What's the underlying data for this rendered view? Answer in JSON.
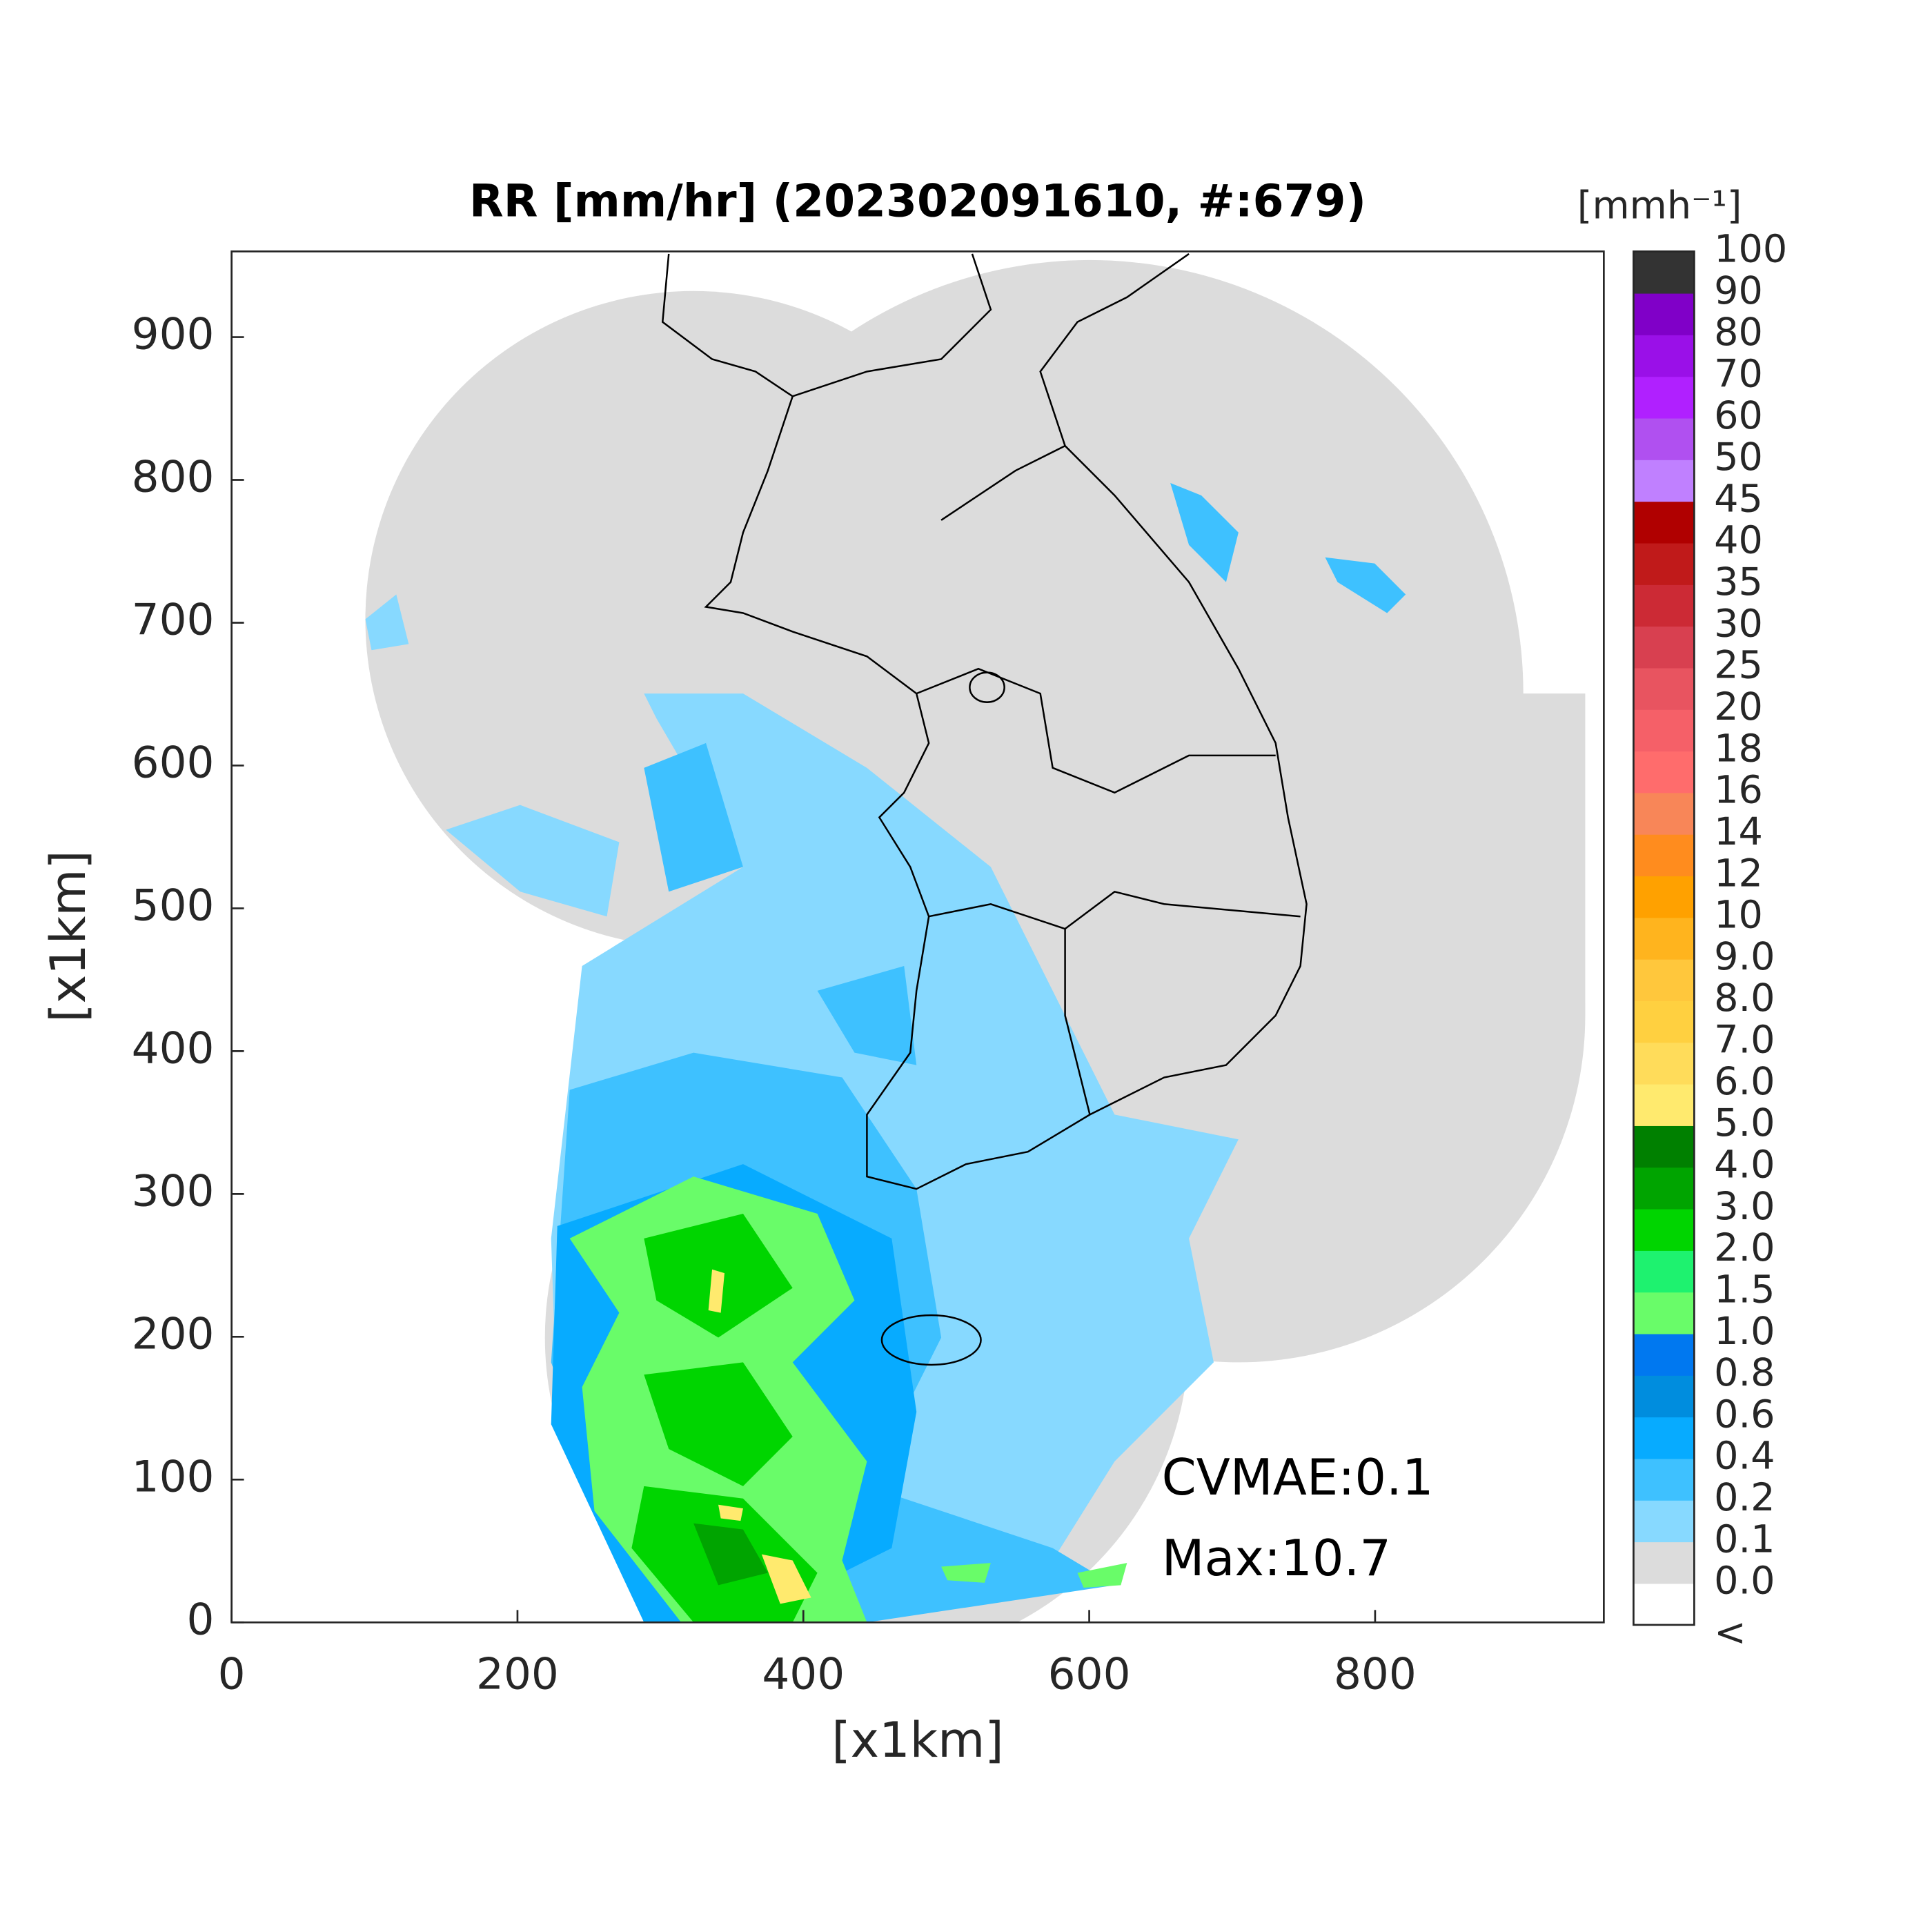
{
  "title": "RR [mm/hr] (202302091610, #:679)",
  "xlabel": "[x1km]",
  "ylabel": "[x1km]",
  "xlim": [
    0,
    960
  ],
  "ylim": [
    0,
    960
  ],
  "xticks": [
    0,
    200,
    400,
    600,
    800
  ],
  "yticks": [
    0,
    100,
    200,
    300,
    400,
    500,
    600,
    700,
    800,
    900
  ],
  "annotations": [
    "CVMAE:0.1",
    "Max:10.7"
  ],
  "colorbar": {
    "title": "[mmh⁻¹]",
    "labels": [
      "<",
      "0.0",
      "0.1",
      "0.2",
      "0.4",
      "0.6",
      "0.8",
      "1.0",
      "1.5",
      "2.0",
      "3.0",
      "4.0",
      "5.0",
      "6.0",
      "7.0",
      "8.0",
      "9.0",
      "10",
      "12",
      "14",
      "16",
      "18",
      "20",
      "25",
      "30",
      "35",
      "40",
      "45",
      "50",
      "60",
      "70",
      "80",
      "90",
      "100"
    ],
    "colors": [
      "#ffffff",
      "#dcdcdc",
      "#87d9ff",
      "#3ec1ff",
      "#07abff",
      "#008dde",
      "#0078f0",
      "#69fc69",
      "#1ef26f",
      "#00d500",
      "#00a400",
      "#008000",
      "#ffea6e",
      "#ffdc5a",
      "#ffd040",
      "#ffc73c",
      "#ffb41e",
      "#ffa100",
      "#ff8c1e",
      "#f88658",
      "#ff6c6c",
      "#f56068",
      "#e85460",
      "#d84050",
      "#cc2a35",
      "#c01a1a",
      "#b00000",
      "#c080ff",
      "#b050f0",
      "#b020ff",
      "#9a10e8",
      "#8000c8",
      "#333333"
    ]
  }
}
